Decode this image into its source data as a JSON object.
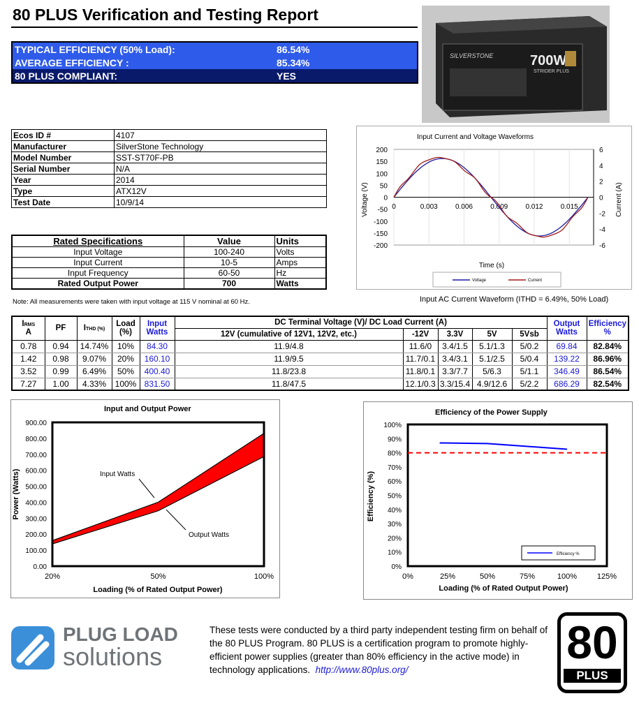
{
  "title": "80 PLUS Verification and Testing Report",
  "summary": [
    {
      "label": "TYPICAL EFFICIENCY (50% Load):",
      "value": "86.54%"
    },
    {
      "label": "AVERAGE EFFICIENCY :",
      "value": "85.34%"
    },
    {
      "label": "80 PLUS COMPLIANT:",
      "value": "YES"
    }
  ],
  "product_image": {
    "brand": "SILVERSTONE",
    "wattage": "700W",
    "series": "STRIDER PLUS"
  },
  "info": [
    [
      "Ecos ID #",
      "4107"
    ],
    [
      "Manufacturer",
      "SilverStone Technology"
    ],
    [
      "Model Number",
      "SST-ST70F-PB"
    ],
    [
      "Serial Number",
      "N/A"
    ],
    [
      "Year",
      "2014"
    ],
    [
      "Type",
      "ATX12V"
    ],
    [
      "Test Date",
      "10/9/14"
    ]
  ],
  "rated": {
    "headers": [
      "Rated Specifications",
      "Value",
      "Units"
    ],
    "rows": [
      [
        "Input Voltage",
        "100-240",
        "Volts"
      ],
      [
        "Input Current",
        "10-5",
        "Amps"
      ],
      [
        "Input Frequency",
        "60-50",
        "Hz"
      ],
      [
        "Rated Output Power",
        "700",
        "Watts"
      ]
    ]
  },
  "note": "Note: All measurements were taken with input voltage at 115 V nominal at 60 Hz.",
  "table": {
    "h": {
      "irms": "IRMS",
      "irms_unit": "A",
      "pf": "PF",
      "ithd": "ITHD (%)",
      "load": "Load (%)",
      "input": "Input Watts",
      "dc": "DC Terminal Voltage (V)/ DC Load Current (A)",
      "v12": "12V (cumulative of 12V1, 12V2, etc.)",
      "m12": "-12V",
      "v33": "3.3V",
      "v5": "5V",
      "v5sb": "5Vsb",
      "output": "Output Watts",
      "eff": "Efficiency %"
    },
    "rows": [
      [
        "0.78",
        "0.94",
        "14.74%",
        "10%",
        "84.30",
        "11.9/4.8",
        "11.6/0",
        "3.4/1.5",
        "5.1/1.3",
        "5/0.2",
        "69.84",
        "82.84%"
      ],
      [
        "1.42",
        "0.98",
        "9.07%",
        "20%",
        "160.10",
        "11.9/9.5",
        "11.7/0.1",
        "3.4/3.1",
        "5.1/2.5",
        "5/0.4",
        "139.22",
        "86.96%"
      ],
      [
        "3.52",
        "0.99",
        "6.49%",
        "50%",
        "400.40",
        "11.8/23.8",
        "11.8/0.1",
        "3.3/7.7",
        "5/6.3",
        "5/1.1",
        "346.49",
        "86.54%"
      ],
      [
        "7.27",
        "1.00",
        "4.33%",
        "100%",
        "831.50",
        "11.8/47.5",
        "12.1/0.3",
        "3.3/15.4",
        "4.9/12.6",
        "5/2.2",
        "686.29",
        "82.54%"
      ]
    ]
  },
  "chart_data": [
    {
      "type": "line",
      "title": "Input Current and Voltage Waveforms",
      "xlabel": "Time (s)",
      "ylabel": "Voltage (V)",
      "y2label": "Current (A)",
      "xticks": [
        "0",
        "0.003",
        "0.006",
        "0.009",
        "0.012",
        "0.015"
      ],
      "yticks": [
        200,
        150,
        100,
        50,
        0,
        -50,
        -100,
        -150,
        -200
      ],
      "y2ticks": [
        6,
        4,
        2,
        0,
        -2,
        -4,
        -6
      ],
      "ylim": [
        -200,
        200
      ],
      "y2lim": [
        -6,
        6
      ],
      "caption": "Input AC Current Waveform (ITHD = 6.49%, 50% Load)",
      "series": [
        {
          "name": "Voltage",
          "color": "#1a1aa0",
          "axis": "left",
          "amplitude": 162,
          "period": 0.0166
        },
        {
          "name": "Current",
          "color": "#a01a1a",
          "axis": "right",
          "amplitude": 5.0,
          "period": 0.0166
        }
      ]
    },
    {
      "type": "area",
      "title": "Input and Output Power",
      "xlabel": "Loading (% of Rated Output Power)",
      "ylabel": "Power (Watts)",
      "categories": [
        "20%",
        "50%",
        "100%"
      ],
      "yticks": [
        "900.00",
        "800.00",
        "700.00",
        "600.00",
        "500.00",
        "400.00",
        "300.00",
        "200.00",
        "100.00",
        "0.00"
      ],
      "ylim": [
        0,
        900
      ],
      "series": [
        {
          "name": "Input Watts",
          "values": [
            160.1,
            400.4,
            831.5
          ]
        },
        {
          "name": "Output Watts",
          "values": [
            139.22,
            346.49,
            686.29
          ]
        }
      ],
      "fill": "#ff0000"
    },
    {
      "type": "line",
      "title": "Efficiency of the Power Supply",
      "xlabel": "Loading (% of Rated Output Power)",
      "ylabel": "Efficiency (%)",
      "xticks": [
        "0%",
        "25%",
        "50%",
        "75%",
        "100%",
        "125%"
      ],
      "yticks": [
        "100%",
        "90%",
        "80%",
        "70%",
        "60%",
        "50%",
        "40%",
        "30%",
        "20%",
        "10%",
        "0%"
      ],
      "xlim": [
        0,
        125
      ],
      "ylim": [
        0,
        100
      ],
      "series": [
        {
          "name": "Efficiency %",
          "x": [
            20,
            50,
            100
          ],
          "y": [
            86.96,
            86.54,
            82.54
          ],
          "color": "#0000ff"
        }
      ],
      "threshold": {
        "value": 80,
        "color": "#ff0000"
      }
    }
  ],
  "footer": {
    "logo_line1": "PLUG LOAD",
    "logo_line2": "solutions",
    "text": "These tests were conducted by a third party independent testing firm on behalf of the 80 PLUS Program. 80 PLUS is a certification program to promote highly-efficient power supplies (greater than 80% efficiency in the active mode) in technology applications.",
    "link": "http://www.80plus.org/",
    "badge_num": "80",
    "badge_text": "PLUS"
  }
}
